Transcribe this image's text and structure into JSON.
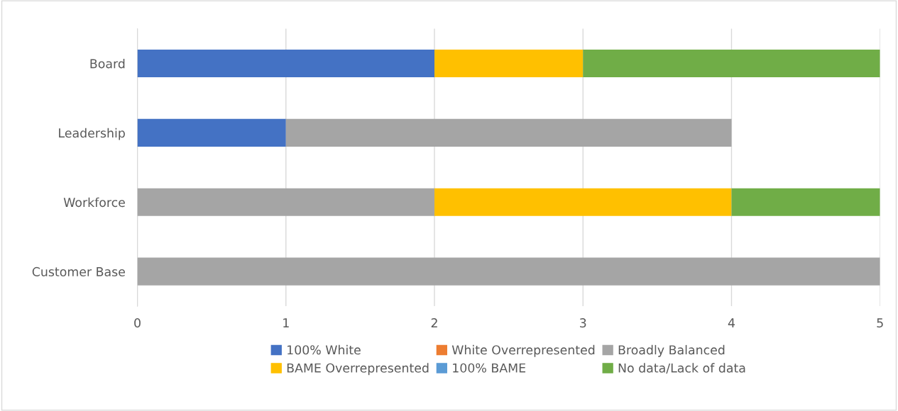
{
  "chart_data": {
    "type": "bar",
    "orientation": "horizontal",
    "stacked": true,
    "categories": [
      "Board",
      "Leadership",
      "Workforce",
      "Customer Base"
    ],
    "series": [
      {
        "name": "100% White",
        "color": "#4472c4",
        "values": [
          2,
          1,
          0,
          0
        ]
      },
      {
        "name": "White Overrepresented",
        "color": "#ed7d31",
        "values": [
          0,
          0,
          0,
          0
        ]
      },
      {
        "name": "Broadly Balanced",
        "color": "#a5a5a5",
        "values": [
          0,
          3,
          2,
          5
        ]
      },
      {
        "name": "BAME Overrepresented",
        "color": "#ffc000",
        "values": [
          1,
          0,
          2,
          0
        ]
      },
      {
        "name": "100% BAME",
        "color": "#5b9bd5",
        "values": [
          0,
          0,
          0,
          0
        ]
      },
      {
        "name": "No data/Lack of data",
        "color": "#70ad47",
        "values": [
          2,
          0,
          1,
          0
        ]
      }
    ],
    "xlim": [
      0,
      5
    ],
    "xticks": [
      0,
      1,
      2,
      3,
      4,
      5
    ],
    "grid": "x",
    "legend": "bottom"
  }
}
